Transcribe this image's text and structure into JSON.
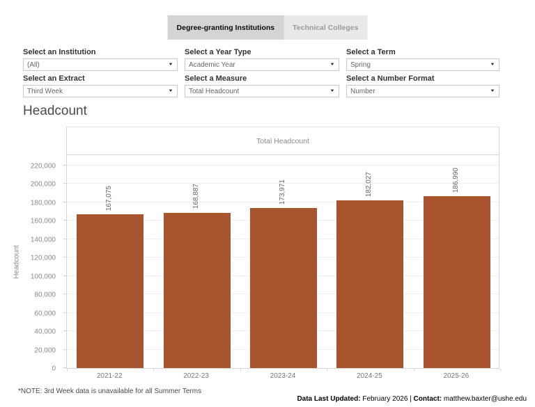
{
  "tabs": [
    {
      "label": "Degree-granting Institutions",
      "active": true
    },
    {
      "label": "Technical Colleges",
      "active": false
    }
  ],
  "filters": [
    {
      "label": "Select an Institution",
      "value": "(All)"
    },
    {
      "label": "Select a Year Type",
      "value": "Academic Year"
    },
    {
      "label": "Select a Term",
      "value": "Spring"
    },
    {
      "label": "Select an Extract",
      "value": "Third Week"
    },
    {
      "label": "Select a Measure",
      "value": "Total Headcount"
    },
    {
      "label": "Select a Number Format",
      "value": "Number"
    }
  ],
  "page": {
    "title": "Headcount"
  },
  "chart_data": {
    "type": "bar",
    "title": "Headcount",
    "column_header": "Total Headcount",
    "categories": [
      "2021-22",
      "2022-23",
      "2023-24",
      "2024-25",
      "2025-26"
    ],
    "values": [
      167075,
      168887,
      173971,
      182027,
      186990
    ],
    "value_labels": [
      "167,075",
      "168,887",
      "173,971",
      "182,027",
      "186,990"
    ],
    "xlabel": "",
    "ylabel": "Headcount",
    "ylim": [
      0,
      220000
    ],
    "ytick_step": 20000,
    "ytick_labels": [
      "0",
      "20,000",
      "40,000",
      "60,000",
      "80,000",
      "100,000",
      "120,000",
      "140,000",
      "160,000",
      "180,000",
      "200,000",
      "220,000"
    ],
    "grid": true,
    "legend": "none",
    "bar_color": "#A8552F"
  },
  "note": "*NOTE: 3rd Week data is unavailable for all Summer Terms",
  "footer": {
    "updated_label": "Data Last Updated:",
    "updated_value": " February 2026 | ",
    "contact_label": "Contact:",
    "contact_value": " matthew.baxter@ushe.edu"
  },
  "icons": {
    "dropdown_caret": "▼"
  }
}
